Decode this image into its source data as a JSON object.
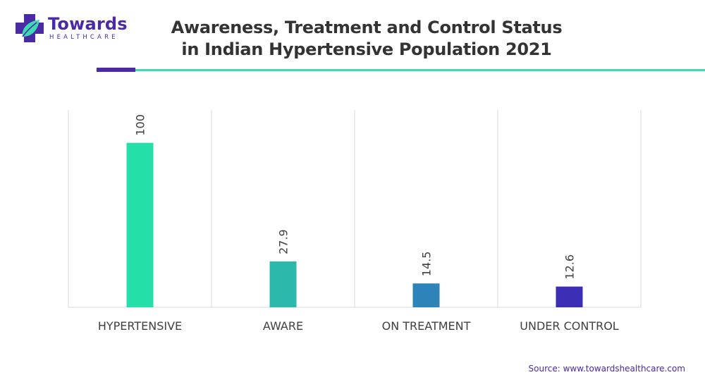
{
  "brand": {
    "name": "Towards",
    "tagline": "HEALTHCARE",
    "colors": {
      "purple": "#4a2aa5",
      "teal": "#3ddbb4"
    }
  },
  "source_text": "Source: www.towardshealthcare.com",
  "chart_data": {
    "type": "bar",
    "title": "Awareness, Treatment and Control Status in Indian Hypertensive Population 2021",
    "categories": [
      "HYPERTENSIVE",
      "AWARE",
      "ON TREATMENT",
      "UNDER CONTROL"
    ],
    "values": [
      100,
      27.9,
      14.5,
      12.6
    ],
    "value_labels": [
      "100",
      "27.9",
      "14.5",
      "12.6"
    ],
    "colors": [
      "#24e0a8",
      "#2cb8aa",
      "#2e83b9",
      "#3b2eb5"
    ],
    "xlabel": "",
    "ylabel": "",
    "ylim": [
      0,
      120
    ],
    "grid": "vertical category separators",
    "legend": "none"
  }
}
